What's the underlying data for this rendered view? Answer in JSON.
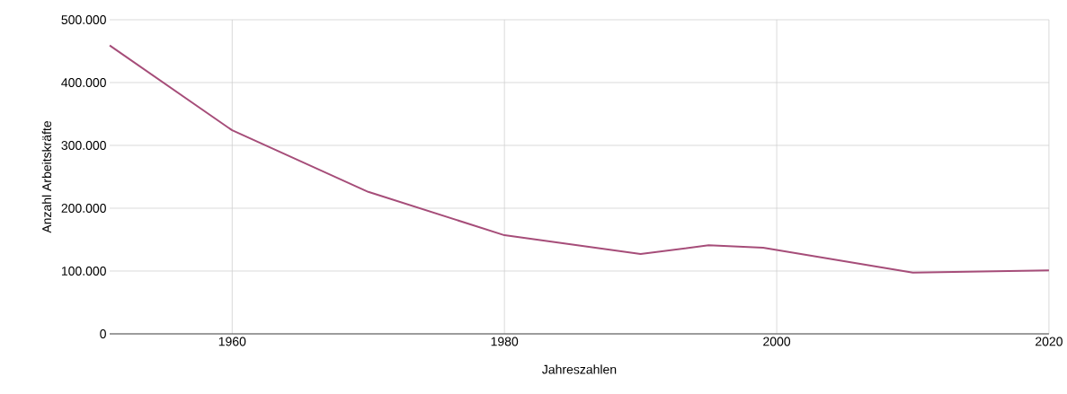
{
  "chart_data": {
    "type": "line",
    "xlabel": "Jahreszahlen",
    "ylabel": "Anzahl Arbeitskräfte",
    "x": [
      1951,
      1960,
      1970,
      1980,
      1990,
      1995,
      1999,
      2010,
      2020
    ],
    "series": [
      {
        "color": "#a64d79",
        "values": [
          459000,
          324000,
          226000,
          157000,
          127000,
          141000,
          137000,
          97500,
          101000
        ]
      }
    ],
    "xlim": [
      1951,
      2020
    ],
    "ylim": [
      0,
      500000
    ],
    "xticks": [
      1960,
      1980,
      2000,
      2020
    ],
    "yticks": [
      0,
      {
        "value": 100000,
        "label": "100.000"
      },
      {
        "value": 200000,
        "label": "200.000"
      },
      {
        "value": 300000,
        "label": "300.000"
      },
      {
        "value": 400000,
        "label": "400.000"
      },
      {
        "value": 500000,
        "label": "500.000"
      }
    ],
    "grid": true,
    "marker": "none",
    "line_style": "solid"
  }
}
